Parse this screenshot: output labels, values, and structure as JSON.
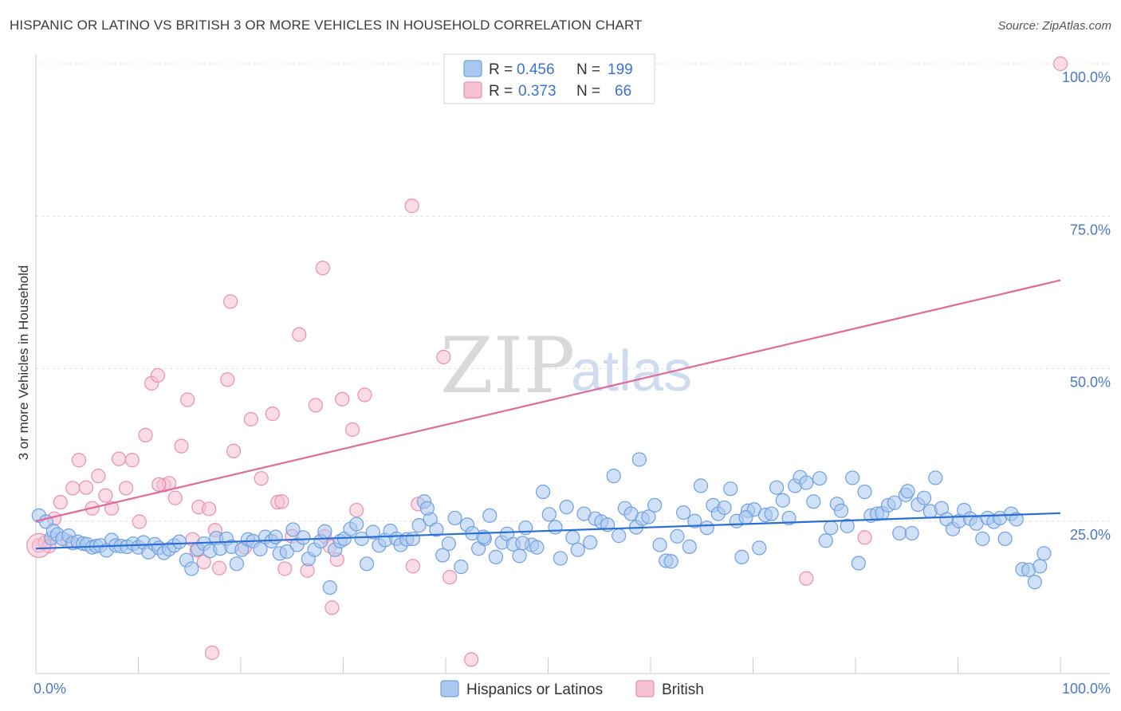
{
  "title": "HISPANIC OR LATINO VS BRITISH 3 OR MORE VEHICLES IN HOUSEHOLD CORRELATION CHART",
  "source": "Source: ZipAtlas.com",
  "watermark": {
    "zip": "ZIP",
    "atlas": "atlas"
  },
  "colors": {
    "blue_fill": "#a9c8f0",
    "blue_stroke": "#6fa0e0",
    "blue_line": "#2b6fd6",
    "pink_fill": "#f5c0d2",
    "pink_stroke": "#e98fb0",
    "pink_line": "#e06a98",
    "tick_text": "#4a78c8"
  },
  "legend": {
    "rows": [
      {
        "r_label": "R =",
        "r_value": "0.456",
        "n_label": "N =",
        "n_value": "199"
      },
      {
        "r_label": "R =",
        "r_value": "0.373",
        "n_label": "N =",
        "n_value": "66"
      }
    ]
  },
  "chart_data": {
    "type": "scatter",
    "xlabel": "",
    "ylabel": "3 or more Vehicles in Household",
    "xlim": [
      0,
      100
    ],
    "ylim": [
      0,
      100
    ],
    "x_tick_labels": [
      "0.0%",
      "100.0%"
    ],
    "y_tick_labels": [
      "25.0%",
      "50.0%",
      "75.0%",
      "100.0%"
    ],
    "y_ticks": [
      25,
      50,
      75,
      100
    ],
    "grid": true,
    "legend_position": "top-center",
    "series": [
      {
        "name": "Hispanics or Latinos",
        "trend": {
          "x": [
            0,
            100
          ],
          "y": [
            20.5,
            26.3
          ]
        },
        "points": [
          [
            0.3,
            25.9
          ],
          [
            1.0,
            24.9
          ],
          [
            1.5,
            22.2
          ],
          [
            1.7,
            23.4
          ],
          [
            2.1,
            22.8
          ],
          [
            2.6,
            22.1
          ],
          [
            3.2,
            22.6
          ],
          [
            3.6,
            21.4
          ],
          [
            4.1,
            21.6
          ],
          [
            4.6,
            21.3
          ],
          [
            5.0,
            21.2
          ],
          [
            5.5,
            20.7
          ],
          [
            5.9,
            20.9
          ],
          [
            6.3,
            21.0
          ],
          [
            6.9,
            20.2
          ],
          [
            7.4,
            21.9
          ],
          [
            7.8,
            21.0
          ],
          [
            8.3,
            20.9
          ],
          [
            8.9,
            20.8
          ],
          [
            9.5,
            21.3
          ],
          [
            10.0,
            20.7
          ],
          [
            10.5,
            21.5
          ],
          [
            11.0,
            19.9
          ],
          [
            11.6,
            21.2
          ],
          [
            12.0,
            20.6
          ],
          [
            12.5,
            19.8
          ],
          [
            13.0,
            20.4
          ],
          [
            13.5,
            21.0
          ],
          [
            14.0,
            21.6
          ],
          [
            14.7,
            18.6
          ],
          [
            15.2,
            17.2
          ],
          [
            15.8,
            20.4
          ],
          [
            16.4,
            21.3
          ],
          [
            17.0,
            20.1
          ],
          [
            17.6,
            22.2
          ],
          [
            18.0,
            20.5
          ],
          [
            18.6,
            22.1
          ],
          [
            19.1,
            20.8
          ],
          [
            19.6,
            18.0
          ],
          [
            20.1,
            20.3
          ],
          [
            20.7,
            22.0
          ],
          [
            21.2,
            21.7
          ],
          [
            21.9,
            20.4
          ],
          [
            22.4,
            22.4
          ],
          [
            23.0,
            21.7
          ],
          [
            23.4,
            22.4
          ],
          [
            23.8,
            19.7
          ],
          [
            24.5,
            20.0
          ],
          [
            25.1,
            23.6
          ],
          [
            25.5,
            21.1
          ],
          [
            26.1,
            22.3
          ],
          [
            26.6,
            18.8
          ],
          [
            27.2,
            20.3
          ],
          [
            27.8,
            21.7
          ],
          [
            28.2,
            23.3
          ],
          [
            28.7,
            14.1
          ],
          [
            29.2,
            20.3
          ],
          [
            29.7,
            21.7
          ],
          [
            30.1,
            22.1
          ],
          [
            30.7,
            23.7
          ],
          [
            31.3,
            24.5
          ],
          [
            31.8,
            22.1
          ],
          [
            32.3,
            18.0
          ],
          [
            32.9,
            23.2
          ],
          [
            33.5,
            21.0
          ],
          [
            34.1,
            21.9
          ],
          [
            34.6,
            23.4
          ],
          [
            35.2,
            22.1
          ],
          [
            35.6,
            21.1
          ],
          [
            36.2,
            22.0
          ],
          [
            36.8,
            22.1
          ],
          [
            37.4,
            24.3
          ],
          [
            37.9,
            28.2
          ],
          [
            38.5,
            25.3
          ],
          [
            39.1,
            23.6
          ],
          [
            39.7,
            19.4
          ],
          [
            40.3,
            21.3
          ],
          [
            40.9,
            25.5
          ],
          [
            41.5,
            17.5
          ],
          [
            42.1,
            24.4
          ],
          [
            42.6,
            23.0
          ],
          [
            43.2,
            20.5
          ],
          [
            43.8,
            22.1
          ],
          [
            44.3,
            25.9
          ],
          [
            44.9,
            19.1
          ],
          [
            45.5,
            21.5
          ],
          [
            46.0,
            22.9
          ],
          [
            46.6,
            21.2
          ],
          [
            47.2,
            19.3
          ],
          [
            47.8,
            23.9
          ],
          [
            48.4,
            21.1
          ],
          [
            48.9,
            20.7
          ],
          [
            49.5,
            29.8
          ],
          [
            50.1,
            26.1
          ],
          [
            50.7,
            24.0
          ],
          [
            51.2,
            18.9
          ],
          [
            51.8,
            27.3
          ],
          [
            52.4,
            22.3
          ],
          [
            52.9,
            20.3
          ],
          [
            53.5,
            26.2
          ],
          [
            54.1,
            21.5
          ],
          [
            54.6,
            25.4
          ],
          [
            55.2,
            24.9
          ],
          [
            55.8,
            24.4
          ],
          [
            56.4,
            32.4
          ],
          [
            56.9,
            22.6
          ],
          [
            57.5,
            27.1
          ],
          [
            58.1,
            26.2
          ],
          [
            58.6,
            24.0
          ],
          [
            59.2,
            25.4
          ],
          [
            59.8,
            25.7
          ],
          [
            60.4,
            27.6
          ],
          [
            60.9,
            21.1
          ],
          [
            61.5,
            18.5
          ],
          [
            62.0,
            18.4
          ],
          [
            62.6,
            22.5
          ],
          [
            63.2,
            26.4
          ],
          [
            63.8,
            20.8
          ],
          [
            64.3,
            25.0
          ],
          [
            64.9,
            30.8
          ],
          [
            65.5,
            23.9
          ],
          [
            66.1,
            27.6
          ],
          [
            66.6,
            26.2
          ],
          [
            67.2,
            27.2
          ],
          [
            67.8,
            30.3
          ],
          [
            68.4,
            25.0
          ],
          [
            68.9,
            19.1
          ],
          [
            69.5,
            26.7
          ],
          [
            70.1,
            26.9
          ],
          [
            70.6,
            20.6
          ],
          [
            71.2,
            26.0
          ],
          [
            71.8,
            26.2
          ],
          [
            72.3,
            30.5
          ],
          [
            72.9,
            28.4
          ],
          [
            73.5,
            25.5
          ],
          [
            74.1,
            30.8
          ],
          [
            74.6,
            32.2
          ],
          [
            75.2,
            31.3
          ],
          [
            75.9,
            28.2
          ],
          [
            76.5,
            32.0
          ],
          [
            77.1,
            21.8
          ],
          [
            77.6,
            23.9
          ],
          [
            78.2,
            27.8
          ],
          [
            78.6,
            26.7
          ],
          [
            79.2,
            24.2
          ],
          [
            79.7,
            32.1
          ],
          [
            80.3,
            18.1
          ],
          [
            80.9,
            29.8
          ],
          [
            81.5,
            25.9
          ],
          [
            82.1,
            26.2
          ],
          [
            82.6,
            26.3
          ],
          [
            83.2,
            27.6
          ],
          [
            83.8,
            28.0
          ],
          [
            84.3,
            23.0
          ],
          [
            84.9,
            29.3
          ],
          [
            85.5,
            23.0
          ],
          [
            86.1,
            27.7
          ],
          [
            86.7,
            28.8
          ],
          [
            87.3,
            26.6
          ],
          [
            87.8,
            32.1
          ],
          [
            88.4,
            27.1
          ],
          [
            88.9,
            25.3
          ],
          [
            89.5,
            23.7
          ],
          [
            90.1,
            25.0
          ],
          [
            90.6,
            26.8
          ],
          [
            91.2,
            25.4
          ],
          [
            91.8,
            24.6
          ],
          [
            92.4,
            22.1
          ],
          [
            92.9,
            25.5
          ],
          [
            93.5,
            24.9
          ],
          [
            94.1,
            25.5
          ],
          [
            94.6,
            22.1
          ],
          [
            95.2,
            26.2
          ],
          [
            95.7,
            25.3
          ],
          [
            96.3,
            17.1
          ],
          [
            96.9,
            17.0
          ],
          [
            97.5,
            15.0
          ],
          [
            98.0,
            17.6
          ],
          [
            98.4,
            19.7
          ],
          [
            38.2,
            27.1
          ],
          [
            47.5,
            21.4
          ],
          [
            58.9,
            35.1
          ],
          [
            85.1,
            29.9
          ],
          [
            69.3,
            25.6
          ],
          [
            43.7,
            22.4
          ]
        ]
      },
      {
        "name": "British",
        "trend": {
          "x": [
            0,
            100
          ],
          "y": [
            25.0,
            64.5
          ]
        },
        "points": [
          [
            0.3,
            21.0
          ],
          [
            0.9,
            21.5
          ],
          [
            1.3,
            20.9
          ],
          [
            1.8,
            25.4
          ],
          [
            2.4,
            28.1
          ],
          [
            3.1,
            21.7
          ],
          [
            3.6,
            30.4
          ],
          [
            4.2,
            35.0
          ],
          [
            4.9,
            30.5
          ],
          [
            5.5,
            27.1
          ],
          [
            6.1,
            32.4
          ],
          [
            6.8,
            29.2
          ],
          [
            7.4,
            27.1
          ],
          [
            8.1,
            35.2
          ],
          [
            8.8,
            30.4
          ],
          [
            9.4,
            35.0
          ],
          [
            10.1,
            24.9
          ],
          [
            10.7,
            39.1
          ],
          [
            11.3,
            47.6
          ],
          [
            11.9,
            48.9
          ],
          [
            12.5,
            30.9
          ],
          [
            13.0,
            31.2
          ],
          [
            13.6,
            28.8
          ],
          [
            14.2,
            37.3
          ],
          [
            14.8,
            44.9
          ],
          [
            15.3,
            22.0
          ],
          [
            15.9,
            27.3
          ],
          [
            16.4,
            18.3
          ],
          [
            16.9,
            27.0
          ],
          [
            17.5,
            23.5
          ],
          [
            17.9,
            17.3
          ],
          [
            18.7,
            48.2
          ],
          [
            19.3,
            36.5
          ],
          [
            19.0,
            61.0
          ],
          [
            20.4,
            20.7
          ],
          [
            21.0,
            41.7
          ],
          [
            22.0,
            32.0
          ],
          [
            23.1,
            42.6
          ],
          [
            23.6,
            28.1
          ],
          [
            24.0,
            28.2
          ],
          [
            25.0,
            22.5
          ],
          [
            25.7,
            55.6
          ],
          [
            26.5,
            16.9
          ],
          [
            28.0,
            66.5
          ],
          [
            27.3,
            44.0
          ],
          [
            28.2,
            22.5
          ],
          [
            28.7,
            20.9
          ],
          [
            28.9,
            10.8
          ],
          [
            29.4,
            18.7
          ],
          [
            29.9,
            45.0
          ],
          [
            30.9,
            40.0
          ],
          [
            31.3,
            26.8
          ],
          [
            32.1,
            45.7
          ],
          [
            36.7,
            76.7
          ],
          [
            36.8,
            17.6
          ],
          [
            37.3,
            27.8
          ],
          [
            39.8,
            51.9
          ],
          [
            40.4,
            15.8
          ],
          [
            42.5,
            2.3
          ],
          [
            15.7,
            20.2
          ],
          [
            17.2,
            3.4
          ],
          [
            75.2,
            15.6
          ],
          [
            80.9,
            22.3
          ],
          [
            100.0,
            100.0
          ],
          [
            12.0,
            31.0
          ],
          [
            24.3,
            17.2
          ]
        ]
      }
    ]
  },
  "bottom_legend": [
    {
      "label": "Hispanics or Latinos"
    },
    {
      "label": "British"
    }
  ]
}
